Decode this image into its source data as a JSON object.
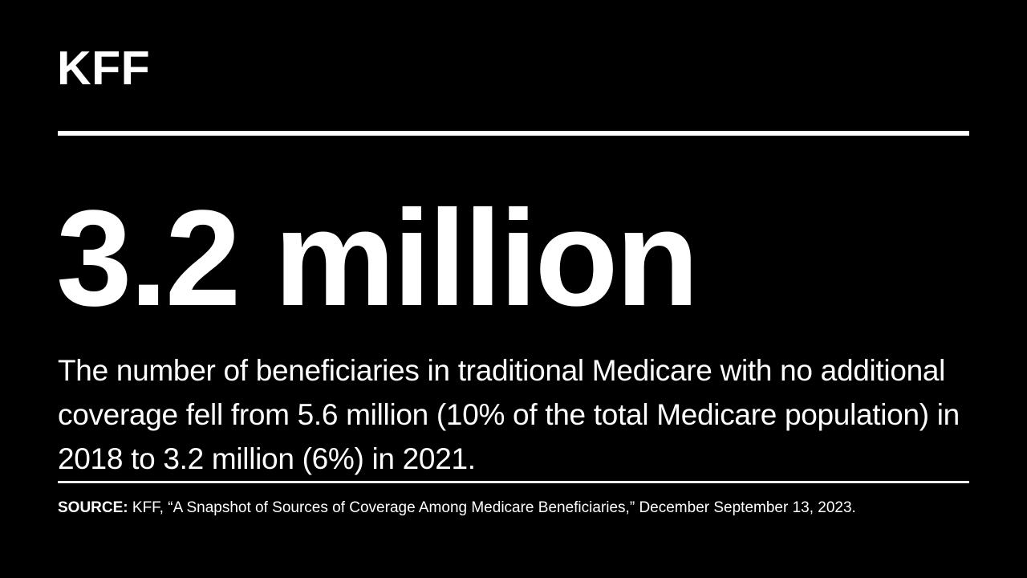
{
  "page": {
    "background_color": "#000000",
    "text_color": "#ffffff"
  },
  "brand": {
    "logo_text": "KFF"
  },
  "stat": {
    "value": "3.2 million"
  },
  "description": {
    "text": "The number of beneficiaries in traditional Medicare with no additional coverage fell from 5.6 million (10% of the total Medicare population) in 2018 to 3.2 million (6%) in 2021."
  },
  "source": {
    "label": "SOURCE:",
    "citation": " KFF, “A Snapshot of Sources of Coverage Among Medicare Beneficiaries,” December September 13, 2023."
  }
}
